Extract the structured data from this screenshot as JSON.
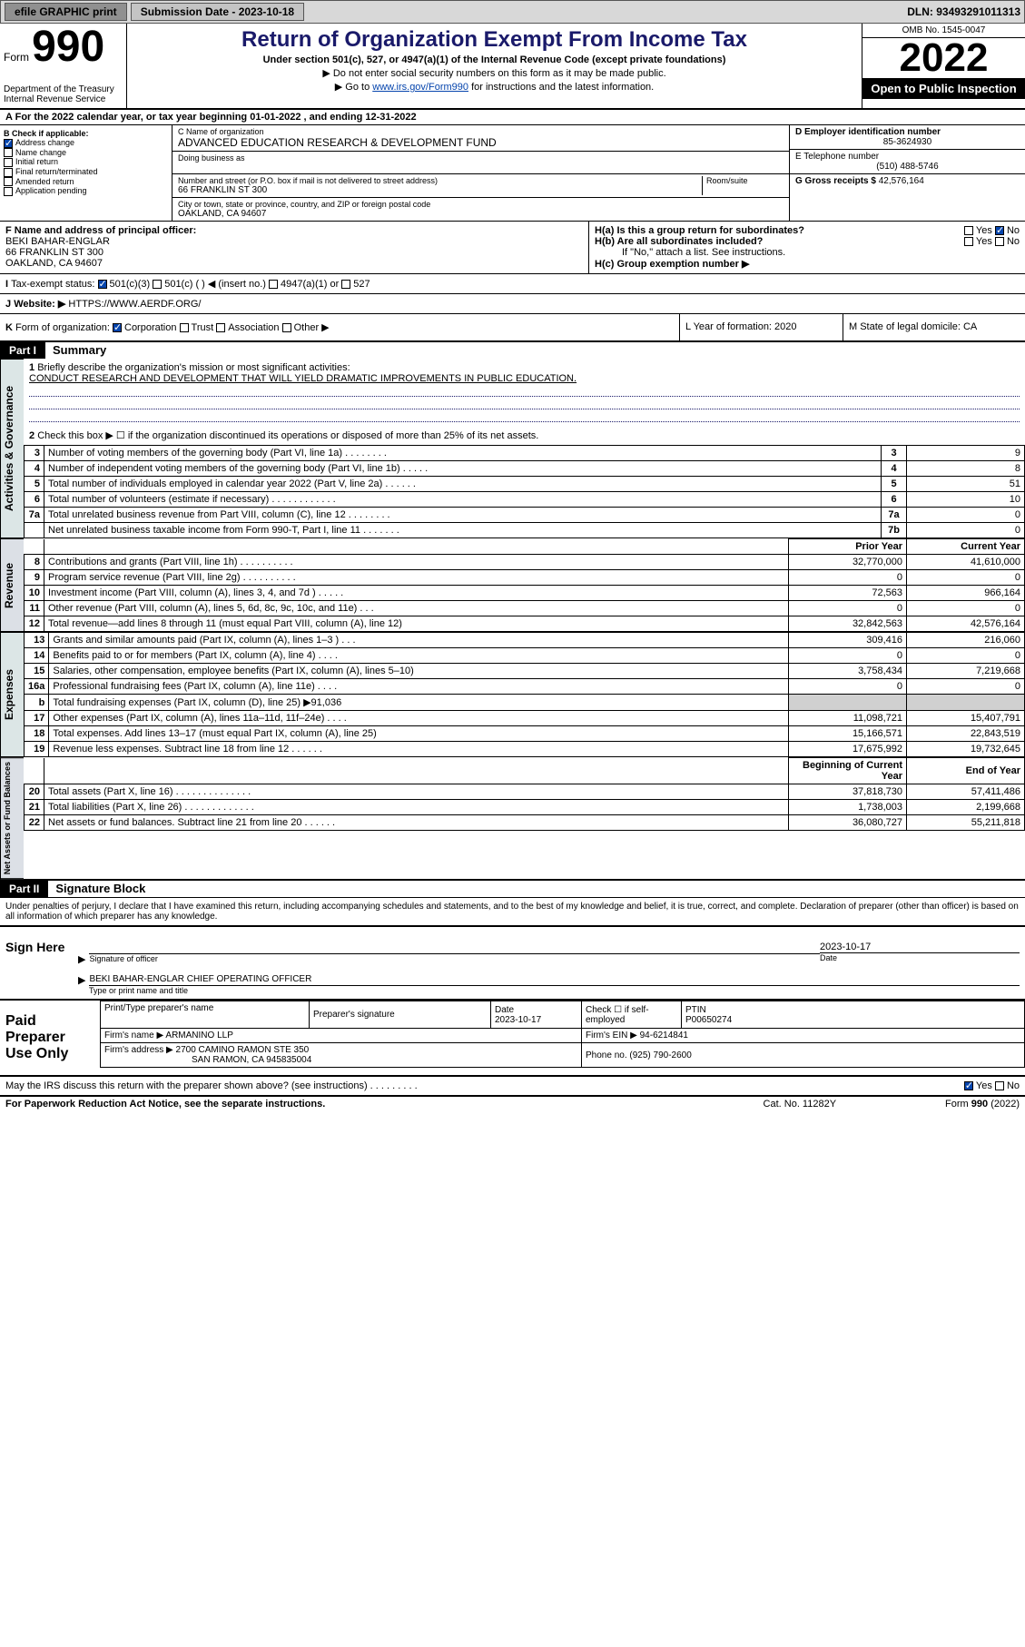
{
  "topbar": {
    "efile": "efile GRAPHIC print",
    "submission": "Submission Date - 2023-10-18",
    "dln": "DLN: 93493291011313"
  },
  "header": {
    "form_prefix": "Form",
    "form_no": "990",
    "dept": "Department of the Treasury",
    "irs": "Internal Revenue Service",
    "title": "Return of Organization Exempt From Income Tax",
    "subtitle": "Under section 501(c), 527, or 4947(a)(1) of the Internal Revenue Code (except private foundations)",
    "note1": "▶ Do not enter social security numbers on this form as it may be made public.",
    "note2_pre": "▶ Go to ",
    "note2_link": "www.irs.gov/Form990",
    "note2_post": " for instructions and the latest information.",
    "omb": "OMB No. 1545-0047",
    "year": "2022",
    "open_pub": "Open to Public Inspection"
  },
  "line_a": "For the 2022 calendar year, or tax year beginning 01-01-2022   , and ending 12-31-2022",
  "checkb": {
    "label": "B Check if applicable:",
    "addr_change": "Address change",
    "name_change": "Name change",
    "initial": "Initial return",
    "final": "Final return/terminated",
    "amended": "Amended return",
    "app_pending": "Application pending"
  },
  "c": {
    "label": "C Name of organization",
    "name": "ADVANCED EDUCATION RESEARCH & DEVELOPMENT FUND",
    "dba_label": "Doing business as",
    "addr_label": "Number and street (or P.O. box if mail is not delivered to street address)",
    "room": "Room/suite",
    "addr": "66 FRANKLIN ST 300",
    "city_label": "City or town, state or province, country, and ZIP or foreign postal code",
    "city": "OAKLAND, CA  94607"
  },
  "d": {
    "label": "D Employer identification number",
    "val": "85-3624930"
  },
  "e": {
    "label": "E Telephone number",
    "val": "(510) 488-5746"
  },
  "g": {
    "label": "G Gross receipts $",
    "val": "42,576,164"
  },
  "f": {
    "label": "F Name and address of principal officer:",
    "name": "BEKI BAHAR-ENGLAR",
    "addr1": "66 FRANKLIN ST 300",
    "addr2": "OAKLAND, CA  94607"
  },
  "h": {
    "ha": "H(a)  Is this a group return for subordinates?",
    "hb": "H(b)  Are all subordinates included?",
    "hb_note": "If \"No,\" attach a list. See instructions.",
    "hc": "H(c)  Group exemption number ▶"
  },
  "i": "Tax-exempt status:",
  "i_501c3": "501(c)(3)",
  "i_501c": "501(c) (  ) ◀ (insert no.)",
  "i_4947": "4947(a)(1) or",
  "i_527": "527",
  "j": "Website: ▶",
  "j_val": "HTTPS://WWW.AERDF.ORG/",
  "k": "Form of organization:",
  "k_corp": "Corporation",
  "k_trust": "Trust",
  "k_assoc": "Association",
  "k_other": "Other ▶",
  "l": "L Year of formation: 2020",
  "m": "M State of legal domicile: CA",
  "part1": {
    "hdr": "Part I",
    "title": "Summary"
  },
  "mission_label": "Briefly describe the organization's mission or most significant activities:",
  "mission": "CONDUCT RESEARCH AND DEVELOPMENT THAT WILL YIELD DRAMATIC IMPROVEMENTS IN PUBLIC EDUCATION.",
  "line2": "Check this box ▶ ☐  if the organization discontinued its operations or disposed of more than 25% of its net assets.",
  "act_lines": [
    {
      "n": "3",
      "t": "Number of voting members of the governing body (Part VI, line 1a)  .   .   .   .   .   .   .   .",
      "rn": "3",
      "v": "9"
    },
    {
      "n": "4",
      "t": "Number of independent voting members of the governing body (Part VI, line 1b)  .   .   .   .   .",
      "rn": "4",
      "v": "8"
    },
    {
      "n": "5",
      "t": "Total number of individuals employed in calendar year 2022 (Part V, line 2a)  .   .   .   .   .   .",
      "rn": "5",
      "v": "51"
    },
    {
      "n": "6",
      "t": "Total number of volunteers (estimate if necessary)  .   .   .   .   .   .   .   .   .   .   .   .",
      "rn": "6",
      "v": "10"
    },
    {
      "n": "7a",
      "t": "Total unrelated business revenue from Part VIII, column (C), line 12  .   .   .   .   .   .   .   .",
      "rn": "7a",
      "v": "0"
    },
    {
      "n": "",
      "t": "Net unrelated business taxable income from Form 990-T, Part I, line 11  .   .   .   .   .   .   .",
      "rn": "7b",
      "v": "0"
    }
  ],
  "hdr_prior": "Prior Year",
  "hdr_curr": "Current Year",
  "rev_lines": [
    {
      "n": "8",
      "t": "Contributions and grants (Part VIII, line 1h)  .   .   .   .   .   .   .   .   .   .",
      "p": "32,770,000",
      "c": "41,610,000"
    },
    {
      "n": "9",
      "t": "Program service revenue (Part VIII, line 2g)  .   .   .   .   .   .   .   .   .   .",
      "p": "0",
      "c": "0"
    },
    {
      "n": "10",
      "t": "Investment income (Part VIII, column (A), lines 3, 4, and 7d )  .   .   .   .   .",
      "p": "72,563",
      "c": "966,164"
    },
    {
      "n": "11",
      "t": "Other revenue (Part VIII, column (A), lines 5, 6d, 8c, 9c, 10c, and 11e)  .   .   .",
      "p": "0",
      "c": "0"
    },
    {
      "n": "12",
      "t": "Total revenue—add lines 8 through 11 (must equal Part VIII, column (A), line 12)",
      "p": "32,842,563",
      "c": "42,576,164"
    }
  ],
  "exp_lines": [
    {
      "n": "13",
      "t": "Grants and similar amounts paid (Part IX, column (A), lines 1–3 )  .   .   .",
      "p": "309,416",
      "c": "216,060"
    },
    {
      "n": "14",
      "t": "Benefits paid to or for members (Part IX, column (A), line 4)  .   .   .   .",
      "p": "0",
      "c": "0"
    },
    {
      "n": "15",
      "t": "Salaries, other compensation, employee benefits (Part IX, column (A), lines 5–10)",
      "p": "3,758,434",
      "c": "7,219,668"
    },
    {
      "n": "16a",
      "t": "Professional fundraising fees (Part IX, column (A), line 11e)  .   .   .   .",
      "p": "0",
      "c": "0"
    },
    {
      "n": "b",
      "t": "Total fundraising expenses (Part IX, column (D), line 25) ▶91,036",
      "p": "_shade",
      "c": "_shade"
    },
    {
      "n": "17",
      "t": "Other expenses (Part IX, column (A), lines 11a–11d, 11f–24e)  .   .   .   .",
      "p": "11,098,721",
      "c": "15,407,791"
    },
    {
      "n": "18",
      "t": "Total expenses. Add lines 13–17 (must equal Part IX, column (A), line 25)",
      "p": "15,166,571",
      "c": "22,843,519"
    },
    {
      "n": "19",
      "t": "Revenue less expenses. Subtract line 18 from line 12  .   .   .   .   .   .",
      "p": "17,675,992",
      "c": "19,732,645"
    }
  ],
  "hdr_beg": "Beginning of Current Year",
  "hdr_end": "End of Year",
  "net_lines": [
    {
      "n": "20",
      "t": "Total assets (Part X, line 16)  .   .   .   .   .   .   .   .   .   .   .   .   .   .",
      "p": "37,818,730",
      "c": "57,411,486"
    },
    {
      "n": "21",
      "t": "Total liabilities (Part X, line 26)  .   .   .   .   .   .   .   .   .   .   .   .   .",
      "p": "1,738,003",
      "c": "2,199,668"
    },
    {
      "n": "22",
      "t": "Net assets or fund balances. Subtract line 21 from line 20  .   .   .   .   .   .",
      "p": "36,080,727",
      "c": "55,211,818"
    }
  ],
  "part2": {
    "hdr": "Part II",
    "title": "Signature Block"
  },
  "perjury": "Under penalties of perjury, I declare that I have examined this return, including accompanying schedules and statements, and to the best of my knowledge and belief, it is true, correct, and complete. Declaration of preparer (other than officer) is based on all information of which preparer has any knowledge.",
  "sign": {
    "left": "Sign Here",
    "date": "2023-10-17",
    "sig_of": "Signature of officer",
    "date_lbl": "Date",
    "name_title": "BEKI BAHAR-ENGLAR  CHIEF OPERATING OFFICER",
    "type_lbl": "Type or print name and title"
  },
  "prep": {
    "left": "Paid Preparer Use Only",
    "h1": "Print/Type preparer's name",
    "h2": "Preparer's signature",
    "h3": "Date",
    "h3v": "2023-10-17",
    "h4": "Check ☐ if self-employed",
    "h5": "PTIN",
    "h5v": "P00650274",
    "firm": "Firm's name    ▶",
    "firmv": "ARMANINO LLP",
    "ein": "Firm's EIN ▶",
    "einv": "94-6214841",
    "addr": "Firm's address ▶",
    "addrv1": "2700 CAMINO RAMON STE 350",
    "addrv2": "SAN RAMON, CA  945835004",
    "phone": "Phone no.",
    "phonev": "(925) 790-2600"
  },
  "may_irs": "May the IRS discuss this return with the preparer shown above? (see instructions)  .   .   .   .   .   .   .   .   .",
  "footer": {
    "left": "For Paperwork Reduction Act Notice, see the separate instructions.",
    "mid": "Cat. No. 11282Y",
    "right": "Form 990 (2022)"
  },
  "yes": "Yes",
  "no": "No",
  "vlabels": {
    "act": "Activities & Governance",
    "rev": "Revenue",
    "exp": "Expenses",
    "net": "Net Assets or Fund Balances"
  }
}
